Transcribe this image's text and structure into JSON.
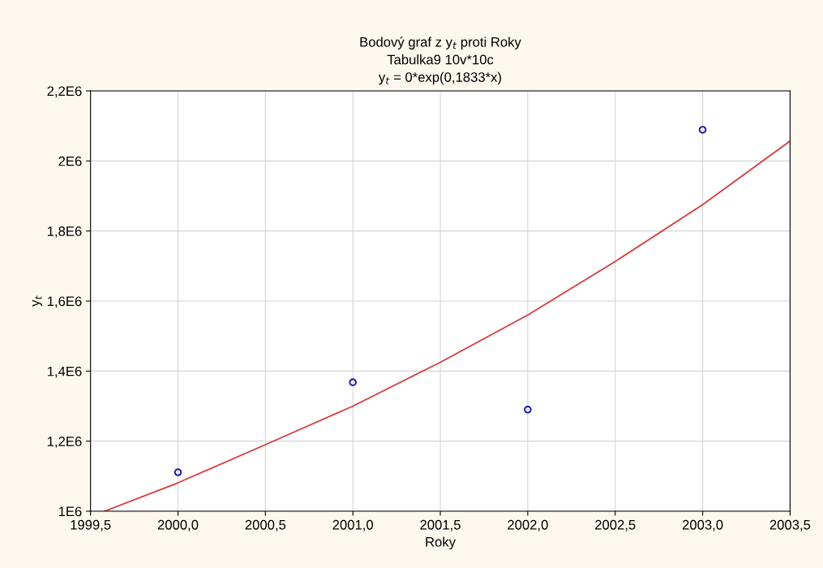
{
  "chart_data": {
    "type": "scatter",
    "title": "Bodový graf z y$_{t}$ proti Roky\nTabulka9 10v*10c\ny$_{t}$ = 0*exp(0,1833*x)",
    "xlabel": "Roky",
    "ylabel": "y$_{t}$",
    "series": [
      {
        "color": "#1a1aa0",
        "marker": "circle",
        "x": [
          2000,
          2001,
          2002,
          2003
        ],
        "values": [
          1111000,
          1368000,
          1290000,
          2089000
        ]
      },
      {
        "type": "line",
        "color": "#d83b3b",
        "marker": "none",
        "x": [
          1999.58,
          2000,
          2000.5,
          2001,
          2001.5,
          2002,
          2002.5,
          2003,
          2003.5
        ],
        "values": [
          1000000,
          1081000,
          1190000,
          1300000,
          1425000,
          1560000,
          1713000,
          1875000,
          2057000
        ]
      }
    ],
    "xlim": [
      1999.5,
      2003.5
    ],
    "xticks": [
      {
        "value": 1999.5,
        "label": "1999,5"
      },
      {
        "value": 2000,
        "label": "2000,0"
      },
      {
        "value": 2000.5,
        "label": "2000,5"
      },
      {
        "value": 2001,
        "label": "2001,0"
      },
      {
        "value": 2001.5,
        "label": "2001,5"
      },
      {
        "value": 2002,
        "label": "2002,0"
      },
      {
        "value": 2002.5,
        "label": "2002,5"
      },
      {
        "value": 2003,
        "label": "2003,0"
      },
      {
        "value": 2003.5,
        "label": "2003,5"
      }
    ],
    "ylim": [
      1000000,
      2200000
    ],
    "yticks": [
      {
        "value": 1000000,
        "label": "1E6"
      },
      {
        "value": 1200000,
        "label": "1,2E6"
      },
      {
        "value": 1400000,
        "label": "1,4E6"
      },
      {
        "value": 1600000,
        "label": "1,6E6"
      },
      {
        "value": 1800000,
        "label": "1,8E6"
      },
      {
        "value": 2000000,
        "label": "2E6"
      },
      {
        "value": 2200000,
        "label": "2,2E6"
      }
    ],
    "grid": true
  }
}
